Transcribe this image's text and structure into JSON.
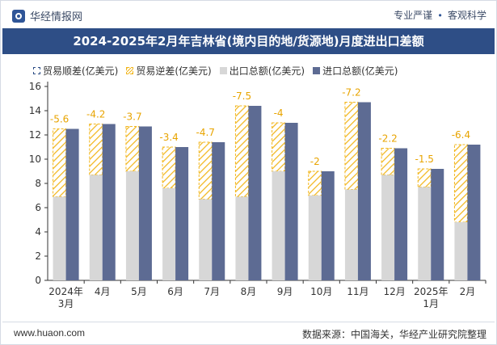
{
  "header": {
    "brand": "华经情报网",
    "tags": [
      "专业严谨",
      "客观科学"
    ]
  },
  "title": "2024-2025年2月年吉林省(境内目的地/货源地)月度进出口差额",
  "legend": {
    "surplus": "贸易顺差(亿美元)",
    "deficit": "贸易逆差(亿美元)",
    "export": "出口总额(亿美元)",
    "import": "进口总额(亿美元)"
  },
  "colors": {
    "title_bg": "#2e4e86",
    "export": "#d7d7d7",
    "import": "#5d6b93",
    "deficit": "#f2b71f"
  },
  "footer": {
    "site": "www.huaon.com",
    "source": "数据来源：中国海关，华经产业研究院整理"
  },
  "chart_data": {
    "type": "bar",
    "categories": [
      "2024年3月",
      "4月",
      "5月",
      "6月",
      "7月",
      "8月",
      "9月",
      "10月",
      "11月",
      "12月",
      "2025年1月",
      "2月"
    ],
    "series": [
      {
        "name": "出口总额(亿美元)",
        "values": [
          6.9,
          8.7,
          9.0,
          7.6,
          6.7,
          6.9,
          9.0,
          7.0,
          7.5,
          8.7,
          7.7,
          4.8
        ]
      },
      {
        "name": "进口总额(亿美元)",
        "values": [
          12.5,
          12.9,
          12.7,
          11.0,
          11.4,
          14.4,
          13.0,
          9.0,
          14.7,
          10.9,
          9.2,
          11.2
        ]
      },
      {
        "name": "贸易逆差(亿美元)",
        "values": [
          -5.6,
          -4.2,
          -3.7,
          -3.4,
          -4.7,
          -7.5,
          -4,
          -2,
          -7.2,
          -2.2,
          -1.5,
          -6.4
        ]
      }
    ],
    "data_labels": [
      "-5.6",
      "-4.2",
      "-3.7",
      "-3.4",
      "-4.7",
      "-7.5",
      "-4",
      "-2",
      "-7.2",
      "-2.2",
      "-1.5",
      "-6.4"
    ],
    "yticks": [
      0,
      2,
      4,
      6,
      8,
      10,
      12,
      14,
      16
    ],
    "ylim": [
      0,
      16
    ],
    "grid": false,
    "legend_position": "top"
  }
}
